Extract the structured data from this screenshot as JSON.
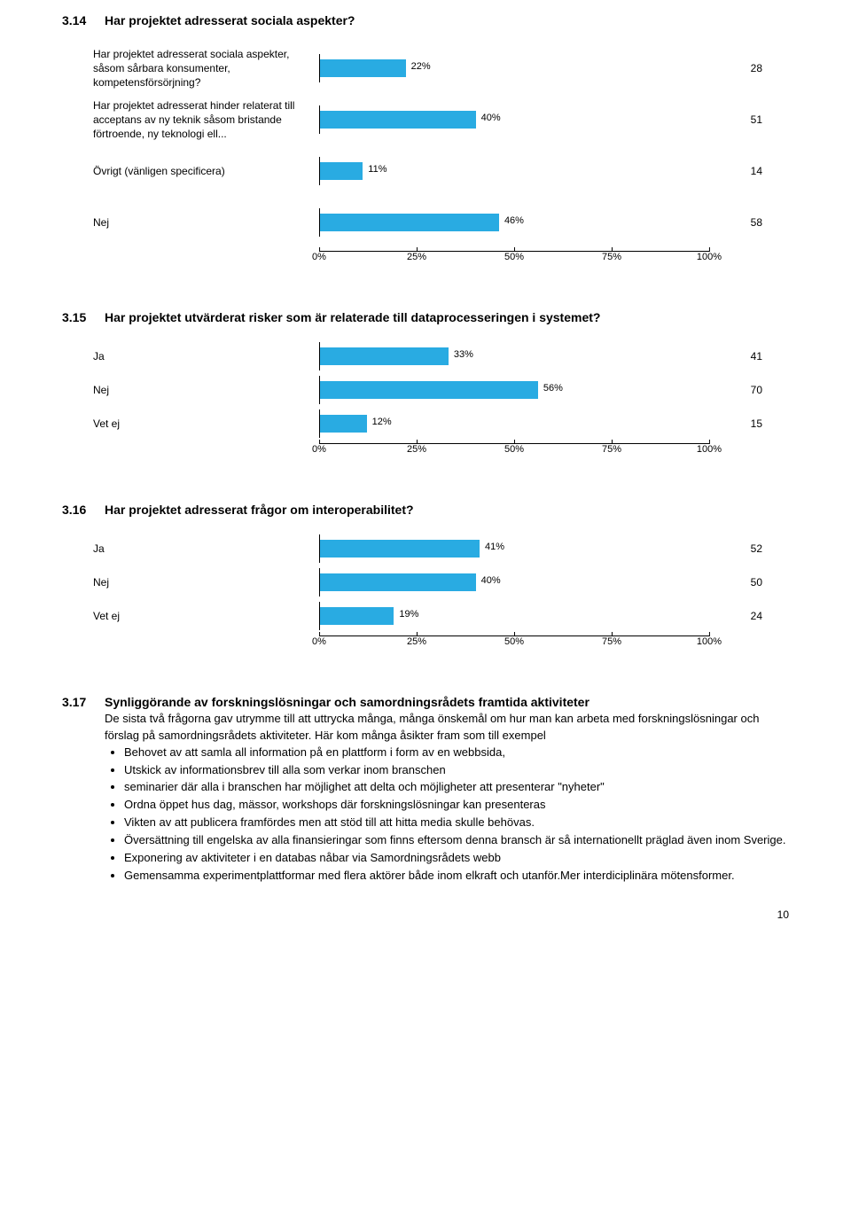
{
  "section1": {
    "num": "3.14",
    "title": "Har projektet adresserat sociala aspekter?"
  },
  "chart1": {
    "bar_color": "#29abe2",
    "rows": [
      {
        "label": "Har projektet adresserat sociala aspekter, såsom sårbara konsumenter, kompetensförsörjning?",
        "pct": 22,
        "count": 28
      },
      {
        "label": "Har projektet adresserat hinder relaterat till acceptans av ny teknik såsom bristande förtroende, ny teknologi ell...",
        "pct": 40,
        "count": 51
      },
      {
        "label": "Övrigt (vänligen specificera)",
        "pct": 11,
        "count": 14
      },
      {
        "label": "Nej",
        "pct": 46,
        "count": 58
      }
    ],
    "ticks": [
      0,
      25,
      50,
      75,
      100
    ]
  },
  "section2": {
    "num": "3.15",
    "title": "Har projektet utvärderat risker som är relaterade till dataprocesseringen i systemet?"
  },
  "chart2": {
    "bar_color": "#29abe2",
    "rows": [
      {
        "label": "Ja",
        "pct": 33,
        "count": 41
      },
      {
        "label": "Nej",
        "pct": 56,
        "count": 70
      },
      {
        "label": "Vet ej",
        "pct": 12,
        "count": 15
      }
    ],
    "ticks": [
      0,
      25,
      50,
      75,
      100
    ]
  },
  "section3": {
    "num": "3.16",
    "title": "Har projektet adresserat frågor om interoperabilitet?"
  },
  "chart3": {
    "bar_color": "#29abe2",
    "rows": [
      {
        "label": "Ja",
        "pct": 41,
        "count": 52
      },
      {
        "label": "Nej",
        "pct": 40,
        "count": 50
      },
      {
        "label": "Vet ej",
        "pct": 19,
        "count": 24
      }
    ],
    "ticks": [
      0,
      25,
      50,
      75,
      100
    ]
  },
  "section4": {
    "num": "3.17",
    "title": "Synliggörande av forskningslösningar och samordningsrådets framtida aktiviteter",
    "body": "De sista två  frågorna gav utrymme till att uttrycka många, många önskemål om hur man kan arbeta med forskningslösningar och förslag på samordningsrådets aktiviteter. Här kom många åsikter fram som till exempel",
    "bullets": [
      "Behovet av att samla all information på en plattform i form av en webbsida,",
      "Utskick av informationsbrev till alla som verkar inom branschen",
      "seminarier där alla i branschen har möjlighet att delta och möjligheter att presenterar \"nyheter\"",
      "Ordna öppet hus dag, mässor, workshops där forskningslösningar kan presenteras",
      "Vikten av att publicera framfördes men att stöd till att hitta media skulle behövas.",
      "Översättning till engelska av alla finansieringar som finns eftersom denna bransch är så internationellt präglad även inom Sverige.",
      "Exponering av aktiviteter i en databas nåbar via Samordningsrådets webb",
      "Gemensamma experimentplattformar med flera aktörer både inom elkraft och utanför.Mer interdiciplinära mötensformer."
    ]
  },
  "page_number": "10"
}
